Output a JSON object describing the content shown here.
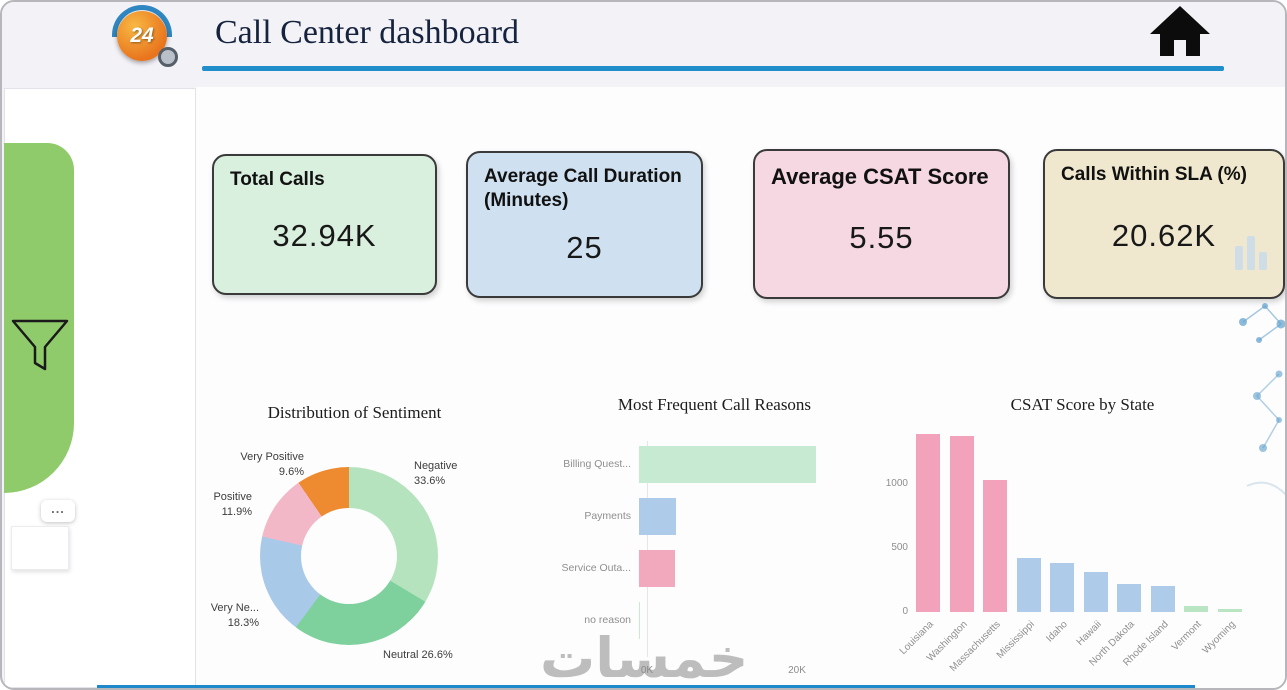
{
  "header": {
    "title": "Call Center dashboard",
    "logo_text": "24"
  },
  "sidebar": {
    "more_label": "..."
  },
  "kpis": [
    {
      "label": "Total Calls",
      "value": "32.94K",
      "bg": "#d9f0de"
    },
    {
      "label": "Average Call Duration (Minutes)",
      "value": "25",
      "bg": "#cfe1f1"
    },
    {
      "label": "Average CSAT Score",
      "value": "5.55",
      "bg": "#f6d8e2"
    },
    {
      "label": "Calls Within SLA (%)",
      "value": "20.62K",
      "bg": "#efe8cf"
    }
  ],
  "chart_data": [
    {
      "type": "pie",
      "title": "Distribution of Sentiment",
      "inner_radius_ratio": 0.54,
      "segments": [
        {
          "label": "Negative",
          "pct": 33.6,
          "color": "#b5e3bd"
        },
        {
          "label": "Neutral",
          "pct": 26.6,
          "color": "#7ed09c"
        },
        {
          "label": "Very Ne...",
          "pct": 18.3,
          "color": "#a9c9e9"
        },
        {
          "label": "Positive",
          "pct": 11.9,
          "color": "#f3b8c8"
        },
        {
          "label": "Very Positive",
          "pct": 9.6,
          "color": "#ee8a30"
        }
      ]
    },
    {
      "type": "bar",
      "orientation": "horizontal",
      "title": "Most Frequent Call Reasons",
      "categories": [
        "Billing Quest...",
        "Payments",
        "Service Outa...",
        "no reason"
      ],
      "values": [
        23600,
        4900,
        4800,
        120
      ],
      "colors": [
        "#c7ead2",
        "#aecbea",
        "#f2a9bd",
        "#c7ead2"
      ],
      "xticks": [
        "0K",
        "20K"
      ],
      "xtick_values": [
        0,
        20000
      ],
      "xmax": 24000
    },
    {
      "type": "bar",
      "orientation": "vertical",
      "title": "CSAT Score by State",
      "categories": [
        "Louisiana",
        "Washington",
        "Massachusetts",
        "Mississippi",
        "Idaho",
        "Hawaii",
        "North Dakota",
        "Rhode Island",
        "Vermont",
        "Wyoming"
      ],
      "values": [
        1390,
        1375,
        1030,
        420,
        385,
        315,
        215,
        200,
        45,
        25
      ],
      "colors": [
        "#f2a3bb",
        "#f2a3bb",
        "#f2a3bb",
        "#aecbea",
        "#aecbea",
        "#aecbea",
        "#aecbea",
        "#aecbea",
        "#b9e5c3",
        "#b9e5c3"
      ],
      "yticks": [
        0,
        500,
        1000
      ],
      "ymax": 1450
    }
  ],
  "watermark": "خمسات",
  "colors": {
    "accent_blue": "#1f8ecb",
    "sidebar_green": "#90cb6b",
    "title_text": "#16233e"
  }
}
